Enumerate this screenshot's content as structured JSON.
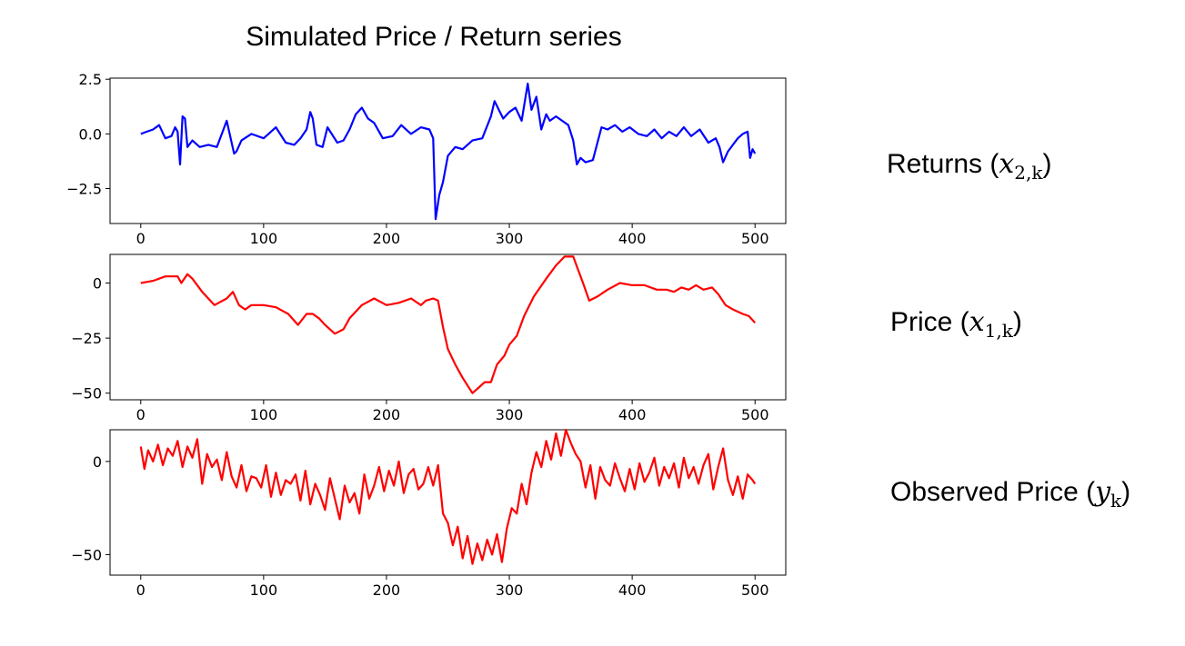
{
  "figure_title": "Simulated Price / Return series",
  "side_labels": [
    {
      "text": "Returns (",
      "math": "x",
      "sub": "2,k",
      "close": ")"
    },
    {
      "text": "Price (",
      "math": "x",
      "sub": "1,k",
      "close": ")"
    },
    {
      "text": "Observed Price (",
      "math": "y",
      "sub": "k",
      "close": ")"
    }
  ],
  "chart_data": [
    {
      "type": "line",
      "title": "",
      "xlabel": "",
      "ylabel": "",
      "color": "#0000ff",
      "xlim": [
        -25,
        525
      ],
      "ylim": [
        -4.1,
        2.55
      ],
      "xticks": [
        0,
        100,
        200,
        300,
        400,
        500
      ],
      "xtick_labels": [
        "0",
        "100",
        "200",
        "300",
        "400",
        "500"
      ],
      "yticks": [
        2.5,
        0.0,
        -2.5
      ],
      "ytick_labels": [
        "2.5",
        "0.0",
        "−2.5"
      ],
      "grid": false,
      "x": [
        0,
        5,
        10,
        15,
        20,
        25,
        28,
        30,
        32,
        34,
        36,
        38,
        42,
        48,
        55,
        62,
        70,
        76,
        78,
        82,
        90,
        100,
        110,
        118,
        125,
        130,
        135,
        138,
        140,
        143,
        148,
        152,
        160,
        165,
        170,
        175,
        180,
        185,
        190,
        197,
        205,
        212,
        220,
        228,
        235,
        238,
        240,
        243,
        246,
        250,
        256,
        262,
        270,
        278,
        285,
        288,
        295,
        300,
        305,
        310,
        315,
        318,
        322,
        326,
        330,
        333,
        338,
        343,
        348,
        352,
        355,
        358,
        362,
        368,
        375,
        380,
        386,
        392,
        398,
        405,
        412,
        418,
        424,
        430,
        436,
        442,
        448,
        455,
        462,
        468,
        471,
        474,
        478,
        482,
        486,
        490,
        494,
        496,
        498,
        500
      ],
      "y": [
        0.0,
        0.1,
        0.2,
        0.4,
        -0.2,
        -0.1,
        0.3,
        0.1,
        -1.4,
        0.8,
        0.7,
        -0.6,
        -0.3,
        -0.6,
        -0.5,
        -0.6,
        0.6,
        -0.9,
        -0.8,
        -0.3,
        0.0,
        -0.2,
        0.3,
        -0.4,
        -0.5,
        -0.2,
        0.2,
        1.0,
        0.7,
        -0.5,
        -0.6,
        0.3,
        -0.4,
        -0.3,
        0.2,
        0.9,
        1.2,
        0.7,
        0.5,
        -0.2,
        -0.1,
        0.4,
        0.0,
        0.3,
        0.2,
        -0.2,
        -3.9,
        -2.8,
        -2.2,
        -1.0,
        -0.6,
        -0.7,
        -0.3,
        -0.2,
        0.8,
        1.5,
        0.7,
        1.0,
        1.2,
        0.6,
        2.3,
        1.1,
        1.7,
        0.2,
        0.9,
        0.6,
        0.8,
        0.6,
        0.4,
        -0.3,
        -1.4,
        -1.1,
        -1.3,
        -1.2,
        0.3,
        0.2,
        0.4,
        0.1,
        0.3,
        0.0,
        -0.1,
        0.2,
        -0.2,
        0.1,
        -0.1,
        0.3,
        -0.1,
        0.2,
        -0.4,
        -0.2,
        -0.6,
        -1.3,
        -0.8,
        -0.5,
        -0.2,
        0.0,
        0.1,
        -1.1,
        -0.7,
        -0.9
      ]
    },
    {
      "type": "line",
      "title": "",
      "xlabel": "",
      "ylabel": "",
      "color": "#ff0000",
      "xlim": [
        -25,
        525
      ],
      "ylim": [
        -53,
        13
      ],
      "xticks": [
        0,
        100,
        200,
        300,
        400,
        500
      ],
      "xtick_labels": [
        "0",
        "100",
        "200",
        "300",
        "400",
        "500"
      ],
      "yticks": [
        0,
        -25,
        -50
      ],
      "ytick_labels": [
        "0",
        "−25",
        "−50"
      ],
      "grid": false,
      "x": [
        0,
        10,
        20,
        25,
        30,
        33,
        38,
        42,
        50,
        60,
        70,
        75,
        80,
        85,
        90,
        95,
        100,
        110,
        120,
        128,
        135,
        140,
        145,
        150,
        158,
        165,
        170,
        180,
        190,
        200,
        210,
        220,
        228,
        232,
        238,
        242,
        246,
        250,
        256,
        262,
        270,
        276,
        280,
        285,
        290,
        296,
        300,
        306,
        312,
        320,
        330,
        338,
        345,
        352,
        356,
        360,
        365,
        372,
        380,
        390,
        400,
        410,
        420,
        428,
        434,
        440,
        446,
        452,
        458,
        465,
        470,
        476,
        482,
        490,
        495,
        500
      ],
      "y": [
        0,
        1,
        3,
        3,
        3,
        0,
        4,
        2,
        -4,
        -10,
        -7,
        -4,
        -10,
        -12,
        -10,
        -10,
        -10,
        -11,
        -14,
        -19,
        -14,
        -14,
        -16,
        -19,
        -23,
        -21,
        -16,
        -10,
        -7,
        -10,
        -9,
        -7,
        -10,
        -8,
        -7,
        -8,
        -20,
        -30,
        -37,
        -43,
        -50,
        -47,
        -45,
        -45,
        -37,
        -33,
        -28,
        -24,
        -15,
        -6,
        2,
        8,
        12,
        12,
        6,
        0,
        -8,
        -6,
        -3,
        0,
        -1,
        -1,
        -3,
        -3,
        -4,
        -2,
        -3,
        -1,
        -3,
        -2,
        -5,
        -10,
        -12,
        -14,
        -15,
        -18
      ]
    },
    {
      "type": "line",
      "title": "",
      "xlabel": "",
      "ylabel": "",
      "color": "#ff0000",
      "xlim": [
        -25,
        525
      ],
      "ylim": [
        -61,
        17
      ],
      "xticks": [
        0,
        100,
        200,
        300,
        400,
        500
      ],
      "xtick_labels": [
        "0",
        "100",
        "200",
        "300",
        "400",
        "500"
      ],
      "yticks": [
        0,
        -50
      ],
      "ytick_labels": [
        "0",
        "−50"
      ],
      "grid": false,
      "x": [
        0,
        3,
        6,
        10,
        14,
        18,
        22,
        26,
        30,
        34,
        38,
        42,
        46,
        50,
        54,
        58,
        62,
        66,
        70,
        74,
        78,
        82,
        86,
        90,
        94,
        98,
        102,
        106,
        110,
        114,
        118,
        122,
        126,
        130,
        134,
        138,
        142,
        146,
        150,
        154,
        158,
        162,
        166,
        170,
        174,
        178,
        182,
        186,
        190,
        194,
        198,
        202,
        206,
        210,
        214,
        218,
        222,
        226,
        230,
        234,
        238,
        242,
        246,
        250,
        254,
        258,
        262,
        266,
        270,
        274,
        278,
        282,
        286,
        290,
        294,
        298,
        302,
        306,
        310,
        314,
        318,
        322,
        326,
        330,
        334,
        338,
        342,
        346,
        350,
        354,
        358,
        362,
        366,
        370,
        374,
        378,
        382,
        386,
        390,
        394,
        398,
        402,
        406,
        410,
        414,
        418,
        422,
        426,
        430,
        434,
        438,
        442,
        446,
        450,
        454,
        458,
        462,
        466,
        470,
        474,
        478,
        482,
        486,
        490,
        494,
        498,
        500
      ],
      "y": [
        8,
        -4,
        6,
        0,
        9,
        -2,
        7,
        3,
        11,
        -3,
        8,
        2,
        12,
        -12,
        4,
        -3,
        1,
        -10,
        5,
        -8,
        -14,
        -2,
        -16,
        -8,
        -9,
        -14,
        -2,
        -19,
        -6,
        -18,
        -10,
        -12,
        -7,
        -21,
        -5,
        -23,
        -12,
        -18,
        -26,
        -9,
        -20,
        -31,
        -13,
        -22,
        -17,
        -28,
        -7,
        -20,
        -13,
        -3,
        -16,
        -5,
        -13,
        0,
        -17,
        -7,
        -4,
        -15,
        -12,
        -3,
        -13,
        -2,
        -28,
        -33,
        -45,
        -35,
        -52,
        -40,
        -55,
        -44,
        -53,
        -42,
        -50,
        -39,
        -54,
        -36,
        -25,
        -28,
        -12,
        -23,
        -6,
        5,
        -3,
        11,
        1,
        15,
        3,
        17,
        10,
        4,
        0,
        -14,
        -2,
        -20,
        -3,
        -10,
        -13,
        -1,
        -9,
        -16,
        -4,
        -15,
        -1,
        -11,
        -6,
        2,
        -13,
        -3,
        -9,
        -1,
        -14,
        2,
        -9,
        -3,
        -12,
        -2,
        4,
        -15,
        -3,
        7,
        -10,
        -18,
        -8,
        -20,
        -7,
        -10,
        -12
      ]
    }
  ]
}
